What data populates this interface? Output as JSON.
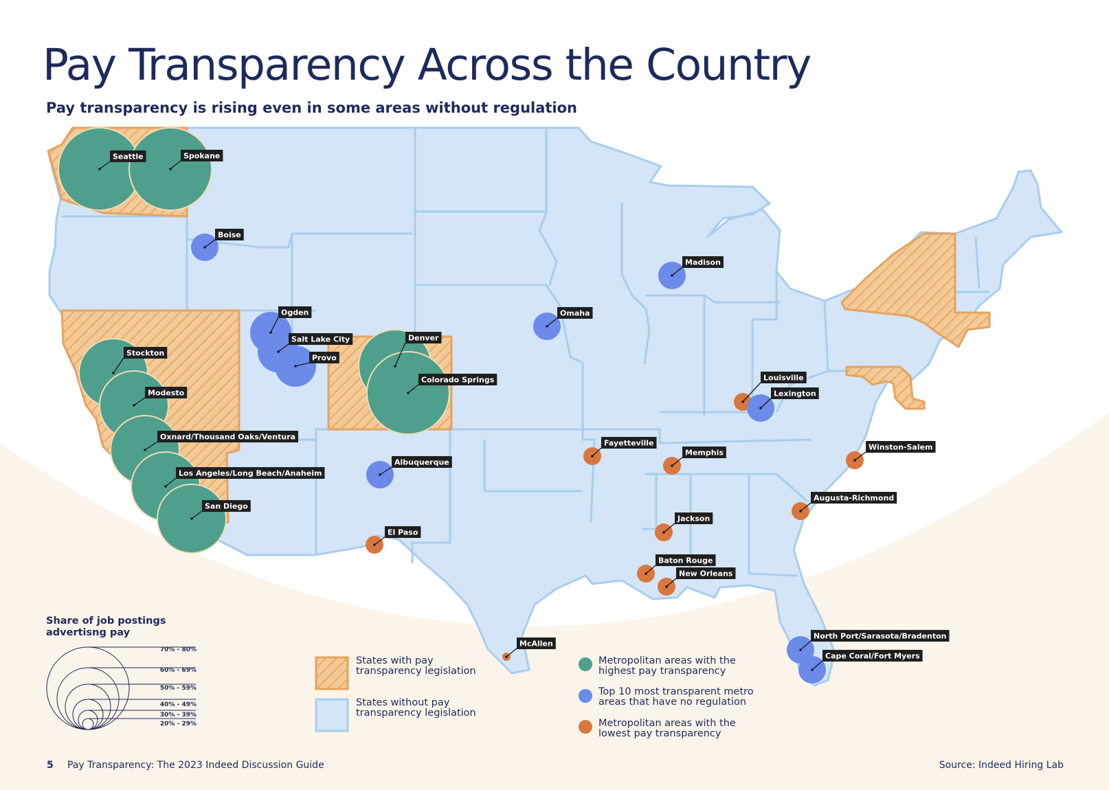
{
  "title": "Pay Transparency Across the Country",
  "subtitle": "Pay transparency is rising even in some areas without regulation",
  "footer": {
    "page_number": "5",
    "doc_title": "Pay Transparency: The 2023 Indeed Discussion Guide",
    "source": "Source: Indeed Hiring Lab"
  },
  "colors": {
    "highest": "#4e9f8c",
    "unregulated": "#6b8aea",
    "lowest": "#d9773f",
    "state_fill": "#d3e5f7",
    "state_border": "#a9cdee",
    "legislation_fill": "#f3c995",
    "legislation_border": "#e5a35f",
    "title": "#1d2a5c"
  },
  "legislation_states": [
    "Washington",
    "California",
    "Nevada",
    "Colorado",
    "New York",
    "Connecticut",
    "Maryland"
  ],
  "metros": [
    {
      "name": "Seattle",
      "category": "highest"
    },
    {
      "name": "Spokane",
      "category": "highest"
    },
    {
      "name": "Boise",
      "category": "unregulated"
    },
    {
      "name": "Madison",
      "category": "unregulated"
    },
    {
      "name": "Ogden",
      "category": "unregulated"
    },
    {
      "name": "Omaha",
      "category": "unregulated"
    },
    {
      "name": "Salt Lake City",
      "category": "unregulated"
    },
    {
      "name": "Denver",
      "category": "highest"
    },
    {
      "name": "Provo",
      "category": "unregulated"
    },
    {
      "name": "Stockton",
      "category": "highest"
    },
    {
      "name": "Colorado Springs",
      "category": "highest"
    },
    {
      "name": "Louisville",
      "category": "lowest"
    },
    {
      "name": "Modesto",
      "category": "highest"
    },
    {
      "name": "Lexington",
      "category": "unregulated"
    },
    {
      "name": "Oxnard/Thousand Oaks/Ventura",
      "category": "highest"
    },
    {
      "name": "Fayetteville",
      "category": "lowest"
    },
    {
      "name": "Winston-Salem",
      "category": "lowest"
    },
    {
      "name": "Memphis",
      "category": "lowest"
    },
    {
      "name": "Albuquerque",
      "category": "unregulated"
    },
    {
      "name": "Los Angeles/Long Beach/Anaheim",
      "category": "highest"
    },
    {
      "name": "Augusta-Richmond",
      "category": "lowest"
    },
    {
      "name": "San Diego",
      "category": "highest"
    },
    {
      "name": "Jackson",
      "category": "lowest"
    },
    {
      "name": "El Paso",
      "category": "lowest"
    },
    {
      "name": "Baton Rouge",
      "category": "lowest"
    },
    {
      "name": "New Orleans",
      "category": "lowest"
    },
    {
      "name": "North Port/Sarasota/Bradenton",
      "category": "unregulated"
    },
    {
      "name": "McAllen",
      "category": "lowest"
    },
    {
      "name": "Cape Coral/Fort Myers",
      "category": "unregulated"
    }
  ],
  "size_legend": {
    "title_line1": "Share of job postings",
    "title_line2": "advertisng pay",
    "ranges": [
      "70% - 80%",
      "60% - 69%",
      "50% - 59%",
      "40% - 49%",
      "30% - 39%",
      "20% - 29%"
    ]
  },
  "state_legend": {
    "with_line1": "States with pay",
    "with_line2": "transparency legislation",
    "without_line1": "States without pay",
    "without_line2": "transparency legislation"
  },
  "metro_legend": {
    "highest_line1": "Metropolitan areas with the",
    "highest_line2": "highest pay transparency",
    "unregulated_line1": "Top 10 most transparent metro",
    "unregulated_line2": "areas that have no regulation",
    "lowest_line1": "Metropolitan areas with the",
    "lowest_line2": "lowest pay transparency"
  }
}
